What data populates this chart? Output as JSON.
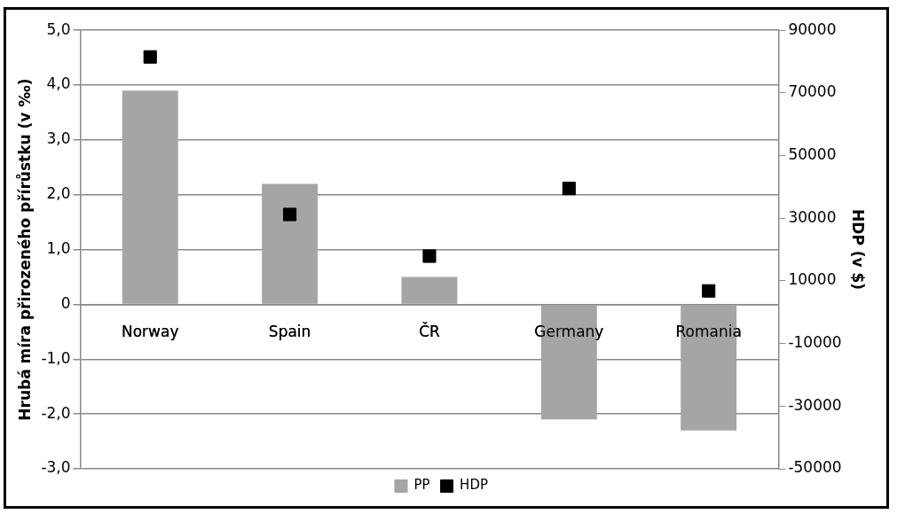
{
  "chart_data": {
    "type": "bar",
    "ylabel": "Hrubá míra přirozeného přírůstku (v ‰)",
    "y2label": "HDP (v $)",
    "categories": [
      "Norway",
      "Spain",
      "ČR",
      "Germany",
      "Romania"
    ],
    "series": [
      {
        "name": "PP",
        "color": "#a5a5a5",
        "values": [
          3.9,
          2.2,
          0.5,
          -2.1,
          -2.3
        ]
      },
      {
        "name": "HDP",
        "type": "scatter",
        "axis": "y2",
        "color": "#000000",
        "values": [
          81500,
          31200,
          17900,
          39500,
          6800
        ]
      }
    ],
    "ylim": [
      -3,
      5
    ],
    "yticks": [
      {
        "value": -3,
        "label": "-3,0"
      },
      {
        "value": -2,
        "label": "-2,0"
      },
      {
        "value": -1,
        "label": "-1,0"
      },
      0,
      {
        "value": 1,
        "label": "1,0"
      },
      {
        "value": 2,
        "label": "2,0"
      },
      {
        "value": 3,
        "label": "3,0"
      },
      {
        "value": 4,
        "label": "4,0"
      },
      {
        "value": 5,
        "label": "5,0"
      }
    ],
    "y2lim": [
      -50000,
      90000
    ],
    "y2ticks": [
      -50000,
      -30000,
      -10000,
      10000,
      30000,
      50000,
      70000,
      90000
    ],
    "grid": "y",
    "legend": "bottom",
    "marker": "square"
  }
}
